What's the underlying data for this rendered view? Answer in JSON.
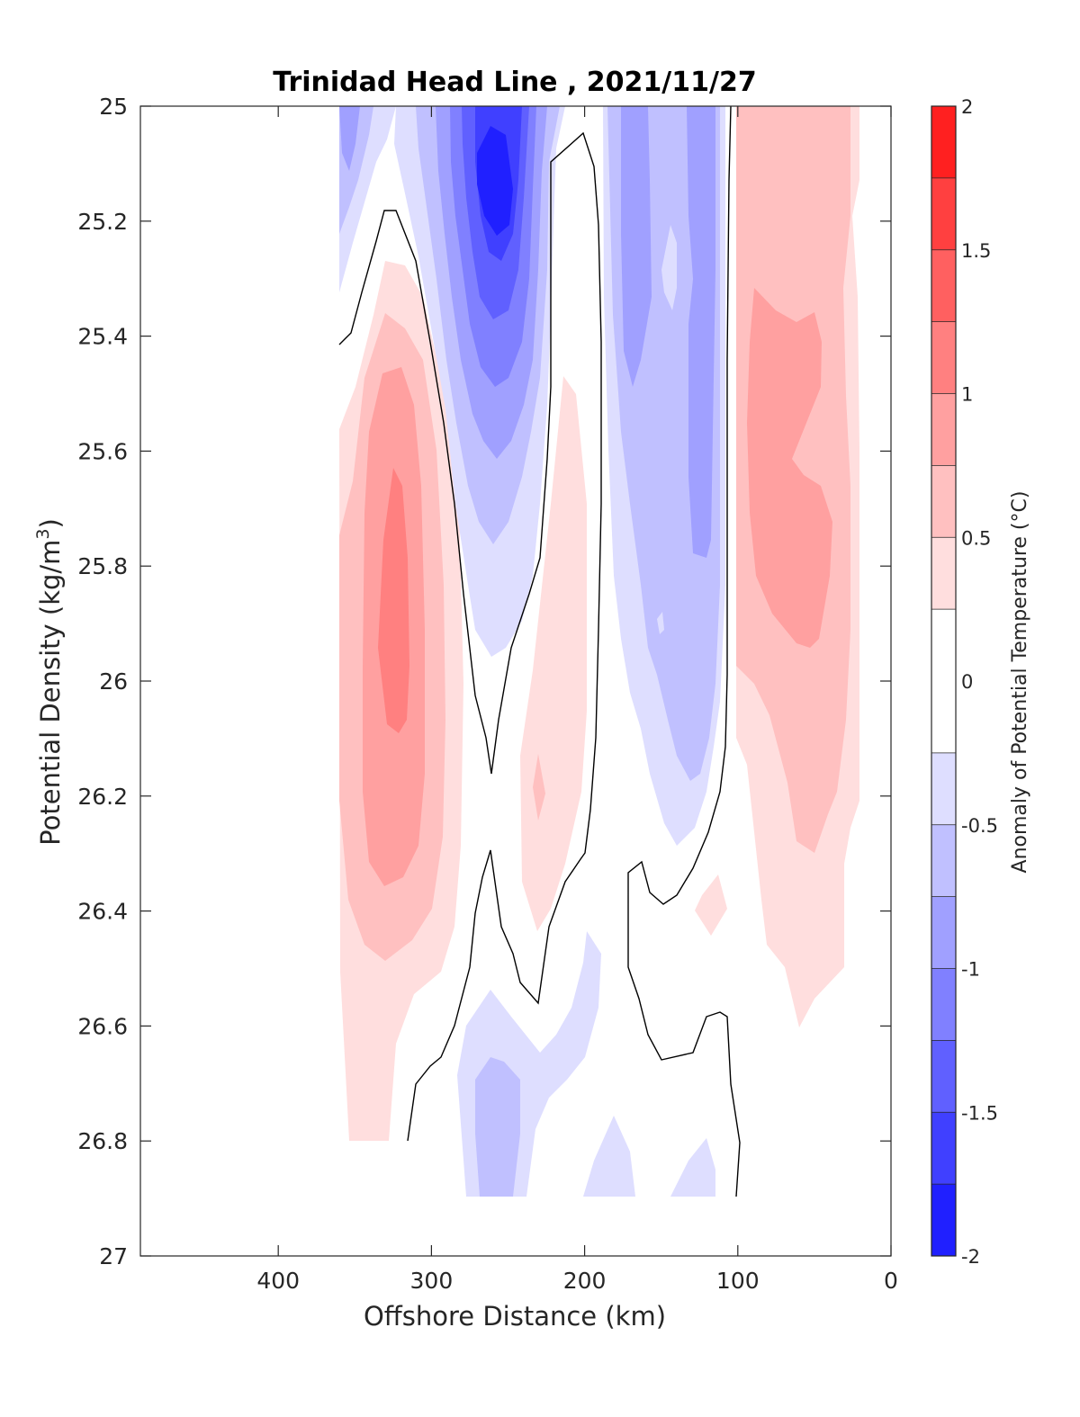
{
  "chart_data": {
    "type": "contourf",
    "title": "Trinidad Head Line , 2021/11/27",
    "xlabel": "Offshore Distance (km)",
    "ylabel": "Potential Density (kg/m",
    "ylabel_sup": "3",
    "ylabel_close": ")",
    "xlim": [
      490,
      0
    ],
    "ylim": [
      25,
      27
    ],
    "xticks": [
      400,
      300,
      200,
      100,
      0
    ],
    "yticks": [
      "25",
      "25.2",
      "25.4",
      "25.6",
      "25.8",
      "26",
      "26.2",
      "26.4",
      "26.6",
      "26.8",
      "27"
    ],
    "colorbar": {
      "label": "Anomaly of Potential Temperature (°C)",
      "range": [
        -2,
        2
      ],
      "ticks": [
        "2",
        "1.5",
        "1",
        "0.5",
        "0",
        "-0.5",
        "-1",
        "-1.5",
        "-2"
      ],
      "levels": [
        -2,
        -1.75,
        -1.5,
        -1.25,
        -1,
        -0.75,
        -0.5,
        -0.25,
        0.25,
        0.5,
        0.75,
        1,
        1.25,
        1.5,
        1.75,
        2
      ],
      "colors": [
        "#0000ff",
        "#2020ff",
        "#4040ff",
        "#6060ff",
        "#8080ff",
        "#a0a0ff",
        "#c0c0ff",
        "#dedeff",
        "#ffffff",
        "#ffdede",
        "#ffc0c0",
        "#ffa0a0",
        "#ff8080",
        "#ff6060",
        "#ff4040",
        "#ff2020",
        "#ff0000"
      ]
    },
    "data_extent": {
      "x": [
        360,
        20
      ],
      "y": [
        25,
        26.9
      ]
    },
    "features": [
      {
        "name": "warm core offshore",
        "x": 325,
        "y": 25.9,
        "peak": 1.25
      },
      {
        "name": "cold core",
        "x": 260,
        "y": 25.2,
        "peak": -1.75
      },
      {
        "name": "cold band",
        "x": 140,
        "y": 25.5,
        "peak": -1.0
      },
      {
        "name": "warm band nearshore",
        "x": 60,
        "y": 25.8,
        "peak": 0.75
      },
      {
        "name": "warm patch",
        "x": 220,
        "y": 26.2,
        "peak": 0.5
      },
      {
        "name": "cold patch deep",
        "x": 255,
        "y": 26.8,
        "peak": -0.75
      }
    ],
    "zero_contour": "black"
  }
}
